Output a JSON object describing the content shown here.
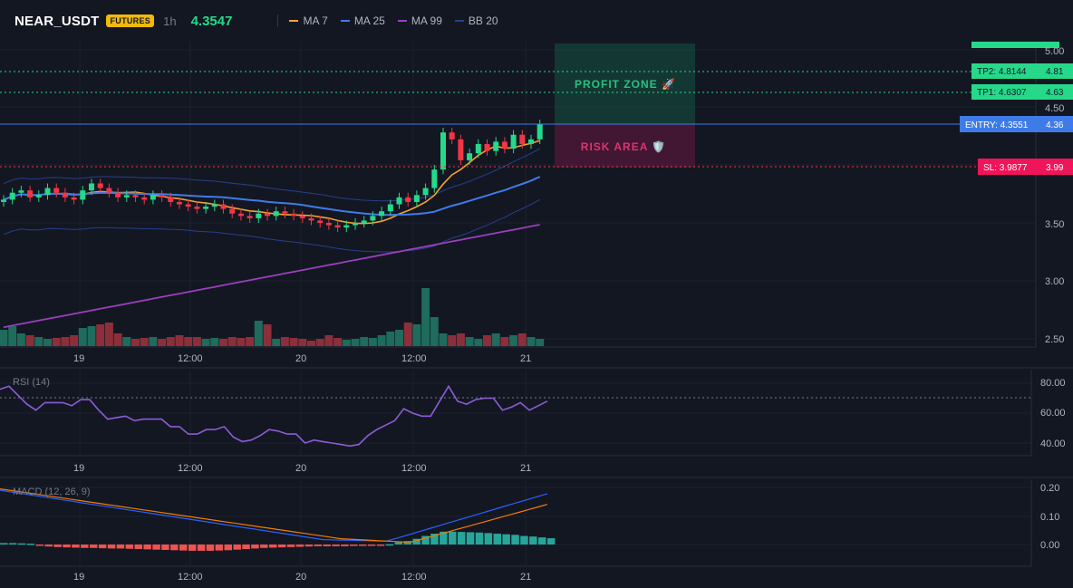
{
  "header": {
    "symbol": "NEAR_USDT",
    "market_badge": "FUTURES",
    "interval": "1h",
    "last_price": "4.3547"
  },
  "legend": [
    {
      "label": "MA 7",
      "color": "#f7a12f"
    },
    {
      "label": "MA 25",
      "color": "#3f7be8"
    },
    {
      "label": "MA 99",
      "color": "#9c3fbf"
    },
    {
      "label": "BB 20",
      "color": "#26408a"
    }
  ],
  "price_axis": {
    "ticks": [
      "5.00",
      "4.50",
      "3.50",
      "3.00",
      "2.50"
    ]
  },
  "time_axis": {
    "ticks": [
      "19",
      "12:00",
      "20",
      "12:00",
      "21"
    ]
  },
  "levels": {
    "tp2_label": "TP2: 4.8144",
    "tp2_axis": "4.81",
    "tp1_label": "TP1: 4.6307",
    "tp1_axis": "4.63",
    "entry_label": "ENTRY: 4.3551",
    "entry_axis": "4.36",
    "sl_label": "SL: 3.9877",
    "sl_axis": "3.99"
  },
  "zones": {
    "profit": "PROFIT ZONE 🚀",
    "risk": "RISK AREA 🛡️"
  },
  "rsi": {
    "title": "RSI (14)",
    "ticks": [
      "80.00",
      "60.00",
      "40.00"
    ],
    "values": [
      76,
      78,
      72,
      66,
      62,
      67,
      67,
      67,
      65,
      69,
      69,
      62,
      56,
      57,
      58,
      55,
      56,
      56,
      56,
      51,
      51,
      46,
      46,
      49,
      49,
      51,
      44,
      41,
      42,
      45,
      49,
      48,
      46,
      46,
      40,
      42,
      41,
      40,
      39,
      38,
      39,
      45,
      49,
      52,
      55,
      63,
      60,
      58,
      58,
      68,
      78,
      68,
      66,
      69,
      70,
      70,
      62,
      64,
      67,
      62,
      65,
      68
    ]
  },
  "macd": {
    "title": "MACD (12, 26, 9)",
    "ticks": [
      "0.20",
      "0.10",
      "0.00"
    ]
  },
  "colors": {
    "up": "#26d98a",
    "down": "#f23645",
    "vol_up": "#1f6b5c",
    "vol_down": "#8c2f3a",
    "bg": "#131722",
    "grid": "#1e222d"
  }
}
